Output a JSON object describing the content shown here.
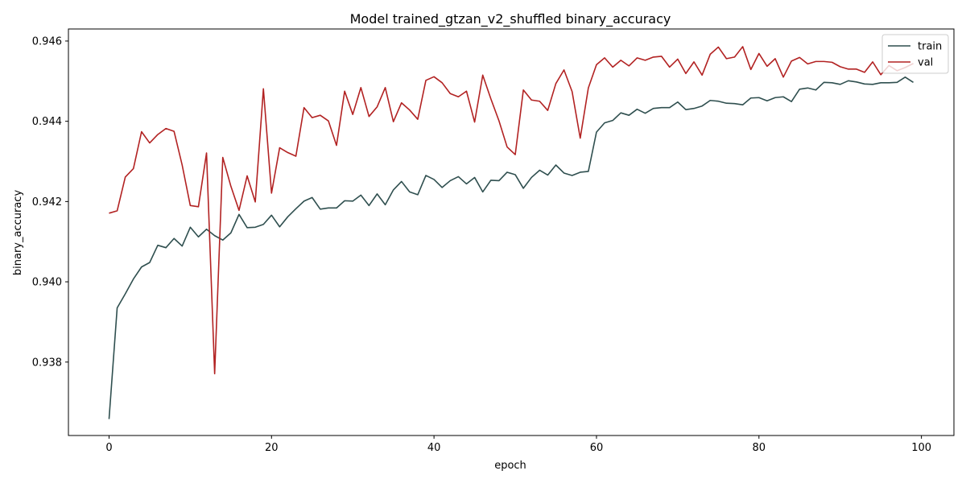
{
  "chart_data": {
    "type": "line",
    "title": "Model trained_gtzan_v2_shuffled binary_accuracy",
    "xlabel": "epoch",
    "ylabel": "binary_accuracy",
    "xlim": [
      -5,
      104
    ],
    "ylim": [
      0.93617,
      0.9463
    ],
    "xticks": [
      0,
      20,
      40,
      60,
      80,
      100
    ],
    "xtick_labels": [
      "0",
      "20",
      "40",
      "60",
      "80",
      "100"
    ],
    "yticks": [
      0.938,
      0.94,
      0.942,
      0.944,
      0.946
    ],
    "ytick_labels": [
      "0.938",
      "0.940",
      "0.942",
      "0.944",
      "0.946"
    ],
    "grid": false,
    "legend_position": "top-right",
    "series": [
      {
        "name": "train",
        "color": "#2f4f4f",
        "x": [
          0,
          1,
          2,
          3,
          4,
          5,
          6,
          7,
          8,
          9,
          10,
          11,
          12,
          13,
          14,
          15,
          16,
          17,
          18,
          19,
          20,
          21,
          22,
          23,
          24,
          25,
          26,
          27,
          28,
          29,
          30,
          31,
          32,
          33,
          34,
          35,
          36,
          37,
          38,
          39,
          40,
          41,
          42,
          43,
          44,
          45,
          46,
          47,
          48,
          49,
          50,
          51,
          52,
          53,
          54,
          55,
          56,
          57,
          58,
          59,
          60,
          61,
          62,
          63,
          64,
          65,
          66,
          67,
          68,
          69,
          70,
          71,
          72,
          73,
          74,
          75,
          76,
          77,
          78,
          79,
          80,
          81,
          82,
          83,
          84,
          85,
          86,
          87,
          88,
          89,
          90,
          91,
          92,
          93,
          94,
          95,
          96,
          97,
          98,
          99
        ],
        "values": [
          0.93658,
          0.93935,
          0.9397,
          0.94007,
          0.94037,
          0.94048,
          0.94091,
          0.94085,
          0.94108,
          0.94089,
          0.94136,
          0.94112,
          0.94131,
          0.94115,
          0.94104,
          0.94122,
          0.94168,
          0.94135,
          0.94136,
          0.94143,
          0.94166,
          0.94137,
          0.94162,
          0.94182,
          0.94201,
          0.9421,
          0.94181,
          0.94184,
          0.94184,
          0.94202,
          0.94201,
          0.94216,
          0.9419,
          0.94219,
          0.94192,
          0.94229,
          0.9425,
          0.94224,
          0.94217,
          0.94265,
          0.94255,
          0.94235,
          0.94252,
          0.94262,
          0.94244,
          0.9426,
          0.94224,
          0.94253,
          0.94252,
          0.94273,
          0.94267,
          0.94233,
          0.9426,
          0.94278,
          0.94266,
          0.94291,
          0.94271,
          0.94265,
          0.94273,
          0.94275,
          0.94373,
          0.94396,
          0.94402,
          0.94421,
          0.94415,
          0.9443,
          0.9442,
          0.94432,
          0.94434,
          0.94434,
          0.94448,
          0.94429,
          0.94432,
          0.94438,
          0.94452,
          0.9445,
          0.94445,
          0.94444,
          0.94441,
          0.94458,
          0.94459,
          0.94451,
          0.94459,
          0.94461,
          0.94449,
          0.9448,
          0.94483,
          0.94478,
          0.94497,
          0.94496,
          0.94492,
          0.94501,
          0.94498,
          0.94493,
          0.94492,
          0.94496,
          0.94496,
          0.94497,
          0.9451,
          0.94497
        ]
      },
      {
        "name": "val",
        "color": "#b22222",
        "x": [
          0,
          1,
          2,
          3,
          4,
          5,
          6,
          7,
          8,
          9,
          10,
          11,
          12,
          13,
          14,
          15,
          16,
          17,
          18,
          19,
          20,
          21,
          22,
          23,
          24,
          25,
          26,
          27,
          28,
          29,
          30,
          31,
          32,
          33,
          34,
          35,
          36,
          37,
          38,
          39,
          40,
          41,
          42,
          43,
          44,
          45,
          46,
          47,
          48,
          49,
          50,
          51,
          52,
          53,
          54,
          55,
          56,
          57,
          58,
          59,
          60,
          61,
          62,
          63,
          64,
          65,
          66,
          67,
          68,
          69,
          70,
          71,
          72,
          73,
          74,
          75,
          76,
          77,
          78,
          79,
          80,
          81,
          82,
          83,
          84,
          85,
          86,
          87,
          88,
          89,
          90,
          91,
          92,
          93,
          94,
          95,
          96,
          97,
          98,
          99
        ],
        "values": [
          0.94171,
          0.94177,
          0.94261,
          0.94282,
          0.94374,
          0.94346,
          0.94367,
          0.94382,
          0.94375,
          0.94291,
          0.9419,
          0.94187,
          0.94321,
          0.93771,
          0.9431,
          0.94238,
          0.94178,
          0.94264,
          0.94199,
          0.94481,
          0.94221,
          0.94334,
          0.94322,
          0.94313,
          0.94434,
          0.94409,
          0.94415,
          0.94401,
          0.9434,
          0.94475,
          0.94417,
          0.94484,
          0.94412,
          0.94436,
          0.94484,
          0.94399,
          0.94446,
          0.94428,
          0.94405,
          0.94502,
          0.94511,
          0.94496,
          0.94469,
          0.94461,
          0.94475,
          0.94398,
          0.94515,
          0.94456,
          0.94401,
          0.94336,
          0.94317,
          0.94478,
          0.94453,
          0.9445,
          0.94427,
          0.94494,
          0.94528,
          0.94474,
          0.94358,
          0.94483,
          0.94541,
          0.94558,
          0.94535,
          0.94552,
          0.94538,
          0.94558,
          0.94552,
          0.9456,
          0.94562,
          0.94535,
          0.94555,
          0.94519,
          0.94548,
          0.94515,
          0.94567,
          0.94585,
          0.94556,
          0.9456,
          0.94586,
          0.94529,
          0.94569,
          0.94537,
          0.94556,
          0.9451,
          0.9455,
          0.94559,
          0.94543,
          0.94549,
          0.94549,
          0.94547,
          0.94536,
          0.9453,
          0.9453,
          0.94522,
          0.94548,
          0.94516,
          0.94539,
          0.94526,
          0.94534,
          0.94544
        ]
      }
    ]
  }
}
